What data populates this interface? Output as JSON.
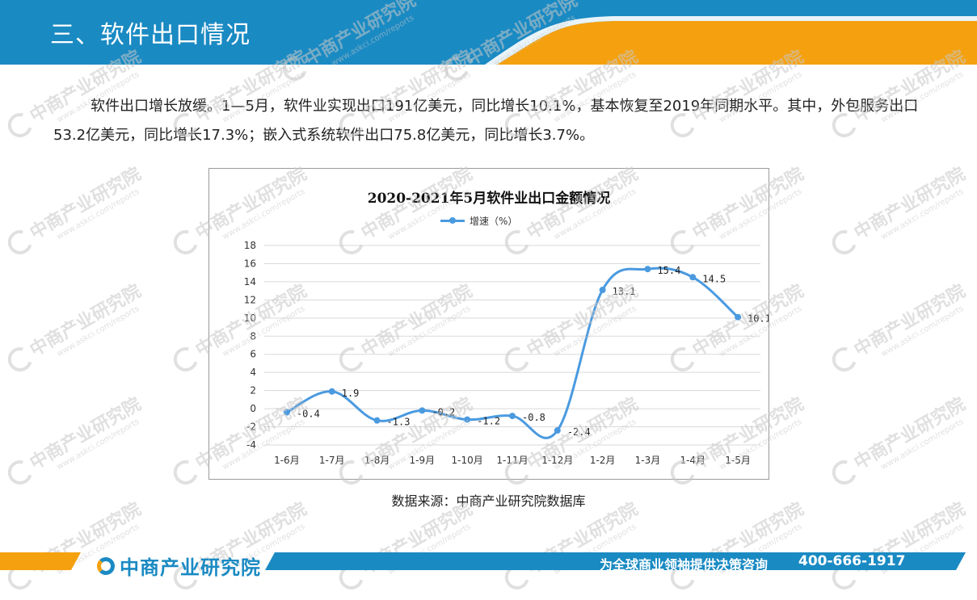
{
  "header": {
    "title": "三、软件出口情况"
  },
  "body_text": "软件出口增长放缓。1—5月，软件业实现出口191亿美元，同比增长10.1%，基本恢复至2019年同期水平。其中，外包服务出口53.2亿美元，同比增长17.3%；嵌入式系统软件出口75.8亿美元，同比增长3.7%。",
  "watermark": {
    "cn": "中商产业研究院",
    "en": "www.askci.com/reports"
  },
  "chart_data": {
    "type": "line",
    "title": "2020-2021年5月软件业出口金额情况",
    "categories": [
      "1-6月",
      "1-7月",
      "1-8月",
      "1-9月",
      "1-10月",
      "1-11月",
      "1-12月",
      "1-2月",
      "1-3月",
      "1-4月",
      "1-5月"
    ],
    "series": [
      {
        "name": "增速（%）",
        "values": [
          -0.4,
          1.9,
          -1.3,
          -0.2,
          -1.2,
          -0.8,
          -2.4,
          13.1,
          15.4,
          14.5,
          10.1
        ],
        "color": "#4a9ae0"
      }
    ],
    "data_labels": [
      "-0.4",
      "1.9",
      "-1.3",
      "-0.2",
      "-1.2",
      "-0.8",
      "-2.4",
      "13.1",
      "15.4",
      "14.5",
      "10.1"
    ],
    "yticks": [
      "18",
      "16",
      "14",
      "12",
      "10",
      "8",
      "6",
      "4",
      "2",
      "0",
      "-2",
      "-4"
    ],
    "ylim": [
      -4,
      18
    ],
    "grid": true,
    "legend_position": "top-center"
  },
  "source": "数据来源：中商产业研究院数据库",
  "footer": {
    "logo_text": "中商产业研究院",
    "slogan": "为全球商业领袖提供决策咨询",
    "phone": "400-666-1917"
  },
  "colors": {
    "header_blue": "#1a8ac3",
    "accent_orange": "#f5a10f",
    "series": "#4a9ae0"
  }
}
